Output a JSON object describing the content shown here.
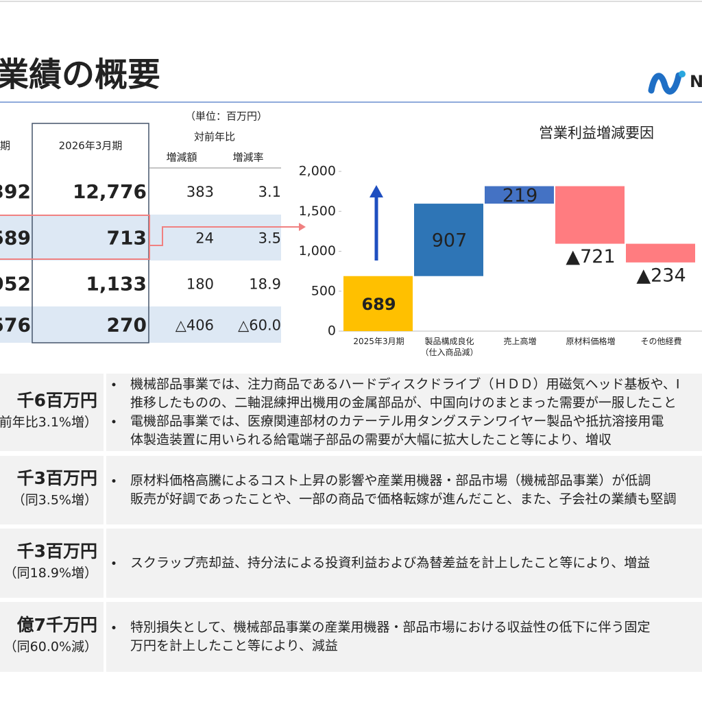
{
  "header": {
    "title": "業績の概要",
    "logo": "N"
  },
  "table": {
    "unit": "（単位：百万円）",
    "headers": [
      "期",
      "2026年3月期",
      "対前年比",
      "増減額",
      "増減率"
    ],
    "rows": [
      [
        "392",
        "12,776",
        "383",
        "3.1"
      ],
      [
        "589",
        "713",
        "24",
        "3.5"
      ],
      [
        "952",
        "1,133",
        "180",
        "18.9"
      ],
      [
        "576",
        "270",
        "△406",
        "△60.0"
      ]
    ]
  },
  "chart_data": {
    "type": "waterfall",
    "title": "営業利益増減要因",
    "categories": [
      "2025年3月期",
      "製品構成良化\n（仕入商品減）",
      "売上高増",
      "原材料価格増",
      "その他経費"
    ],
    "values": [
      689,
      907,
      219,
      -721,
      -234
    ],
    "value_labels": [
      "689",
      "907",
      "219",
      "▲721",
      "▲234"
    ],
    "colors": [
      "#ffc000",
      "#2e75b6",
      "#4472c4",
      "#ff7c80",
      "#ff7c80"
    ],
    "ylim": [
      0,
      2000
    ],
    "yticks": [
      0,
      500,
      {
        "value": 1000,
        "label": "1,000"
      },
      {
        "value": 1500,
        "label": "1,500"
      },
      {
        "value": 2000,
        "label": "2,000"
      }
    ]
  },
  "summary": [
    {
      "amount": "千6百万円",
      "change": "前年比3.1%増）",
      "lines": [
        [
          "機械部品事業では、注力商品であるハードディスクドライブ（ＨＤＤ）用磁気ヘッド基板や、I",
          "推移したものの、二軸混練押出機用の金属部品が、中国向けのまとまった需要が一服したこと"
        ],
        [
          "電機部品事業では、医療関連部材のカテーテル用タングステンワイヤー製品や抵抗溶接用電",
          "体製造装置に用いられる給電端子部品の需要が大幅に拡大したこと等により、増収"
        ]
      ]
    },
    {
      "amount": "千3百万円",
      "change": "（同3.5%増）",
      "lines": [
        [
          "原材料価格高騰によるコスト上昇の影響や産業用機器・部品市場（機械部品事業）が低調",
          "販売が好調であったことや、一部の商品で価格転嫁が進んだこと、また、子会社の業績も堅調"
        ]
      ]
    },
    {
      "amount": "千3百万円",
      "change": "（同18.9%増）",
      "lines": [
        [
          "スクラップ売却益、持分法による投資利益および為替差益を計上したこと等により、増益"
        ]
      ]
    },
    {
      "amount": "億7千万円",
      "change": "（同60.0%減）",
      "lines": [
        [
          "特別損失として、機械部品事業の産業用機器・部品市場における収益性の低下に伴う固定",
          "万円を計上したこと等により、減益"
        ]
      ]
    }
  ]
}
